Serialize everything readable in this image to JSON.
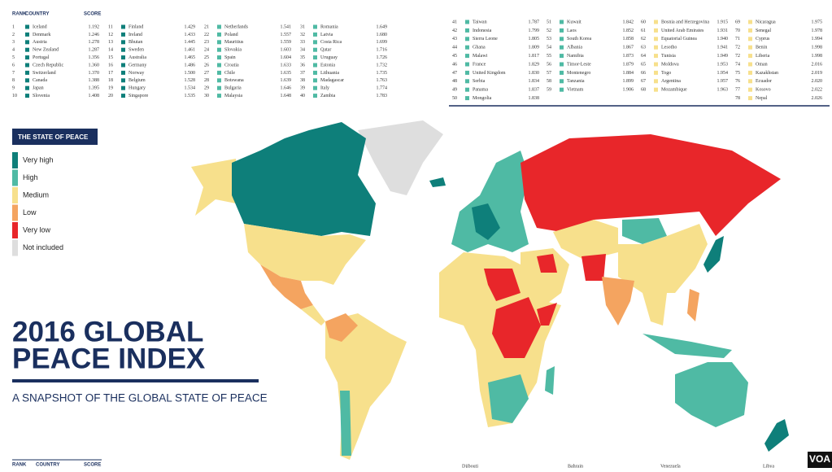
{
  "tables": [
    {
      "header": [
        "RANK",
        "COUNTRY",
        "SCORE"
      ],
      "columns": [
        {
          "color": "#0e7f7a",
          "rows": [
            [
              1,
              "Iceland",
              "1.192"
            ],
            [
              2,
              "Denmark",
              "1.246"
            ],
            [
              3,
              "Austria",
              "1.278"
            ],
            [
              4,
              "New Zealand",
              "1.287"
            ],
            [
              5,
              "Portugal",
              "1.356"
            ],
            [
              6,
              "Czech Republic",
              "1.360"
            ],
            [
              7,
              "Switzerland",
              "1.370"
            ],
            [
              8,
              "Canada",
              "1.388"
            ],
            [
              9,
              "Japan",
              "1.395"
            ],
            [
              10,
              "Slovenia",
              "1.408"
            ]
          ]
        },
        {
          "color": "#0e7f7a",
          "rows": [
            [
              11,
              "Finland",
              "1.429"
            ],
            [
              12,
              "Ireland",
              "1.433"
            ],
            [
              13,
              "Bhutan",
              "1.445"
            ],
            [
              14,
              "Sweden",
              "1.461"
            ],
            [
              15,
              "Australia",
              "1.465"
            ],
            [
              16,
              "Germany",
              "1.486"
            ],
            [
              17,
              "Norway",
              "1.500"
            ],
            [
              18,
              "Belgium",
              "1.528"
            ],
            [
              19,
              "Hungary",
              "1.534"
            ],
            [
              20,
              "Singapore",
              "1.535"
            ]
          ]
        },
        {
          "color": "#4fbaa4",
          "rows": [
            [
              21,
              "Netherlands",
              "1.541"
            ],
            [
              22,
              "Poland",
              "1.557"
            ],
            [
              23,
              "Mauritius",
              "1.559"
            ],
            [
              24,
              "Slovakia",
              "1.603"
            ],
            [
              25,
              "Spain",
              "1.604"
            ],
            [
              26,
              "Croatia",
              "1.633"
            ],
            [
              27,
              "Chile",
              "1.635"
            ],
            [
              28,
              "Botswana",
              "1.639"
            ],
            [
              29,
              "Bulgaria",
              "1.646"
            ],
            [
              30,
              "Malaysia",
              "1.648"
            ]
          ]
        },
        {
          "color": "#4fbaa4",
          "rows": [
            [
              31,
              "Romania",
              "1.649"
            ],
            [
              32,
              "Latvia",
              "1.680"
            ],
            [
              33,
              "Costa Rica",
              "1.699"
            ],
            [
              34,
              "Qatar",
              "1.716"
            ],
            [
              35,
              "Uruguay",
              "1.726"
            ],
            [
              36,
              "Estonia",
              "1.732"
            ],
            [
              37,
              "Lithuania",
              "1.735"
            ],
            [
              38,
              "Madagascar",
              "1.763"
            ],
            [
              39,
              "Italy",
              "1.774"
            ],
            [
              40,
              "Zambia",
              "1.783"
            ]
          ]
        }
      ]
    },
    {
      "columns": [
        {
          "color": "#4fbaa4",
          "rows": [
            [
              41,
              "Taiwan",
              "1.787"
            ],
            [
              42,
              "Indonesia",
              "1.799"
            ],
            [
              43,
              "Sierra Leone",
              "1.805"
            ],
            [
              44,
              "Ghana",
              "1.809"
            ],
            [
              45,
              "Malawi",
              "1.817"
            ],
            [
              46,
              "France",
              "1.829"
            ],
            [
              47,
              "United Kingdom",
              "1.830"
            ],
            [
              48,
              "Serbia",
              "1.834"
            ],
            [
              49,
              "Panama",
              "1.837"
            ],
            [
              50,
              "Mongolia",
              "1.838"
            ]
          ]
        },
        {
          "color": "#4fbaa4",
          "rows": [
            [
              51,
              "Kuwait",
              "1.842"
            ],
            [
              52,
              "Laos",
              "1.852"
            ],
            [
              53,
              "South Korea",
              "1.858"
            ],
            [
              54,
              "Albania",
              "1.867"
            ],
            [
              55,
              "Namibia",
              "1.873"
            ],
            [
              56,
              "Timor-Leste",
              "1.879"
            ],
            [
              57,
              "Montenegro",
              "1.884"
            ],
            [
              58,
              "Tanzania",
              "1.899"
            ],
            [
              59,
              "Vietnam",
              "1.906"
            ]
          ]
        },
        {
          "color": "#f7e08c",
          "rows": [
            [
              60,
              "Bosnia and Herzegovina",
              "1.915"
            ],
            [
              61,
              "United Arab Emirates",
              "1.931"
            ],
            [
              62,
              "Equatorial Guinea",
              "1.940"
            ],
            [
              63,
              "Lesotho",
              "1.941"
            ],
            [
              64,
              "Tunisia",
              "1.949"
            ],
            [
              65,
              "Moldova",
              "1.953"
            ],
            [
              66,
              "Togo",
              "1.954"
            ],
            [
              67,
              "Argentina",
              "1.957"
            ],
            [
              68,
              "Mozambique",
              "1.963"
            ]
          ]
        },
        {
          "color": "#f7e08c",
          "rows": [
            [
              69,
              "Nicaragua",
              "1.975"
            ],
            [
              70,
              "Senegal",
              "1.978"
            ],
            [
              71,
              "Cyprus",
              "1.994"
            ],
            [
              72,
              "Benin",
              "1.998"
            ],
            [
              72,
              "Liberia",
              "1.998"
            ],
            [
              74,
              "Oman",
              "2.016"
            ],
            [
              75,
              "Kazakhstan",
              "2.019"
            ],
            [
              76,
              "Ecuador",
              "2.020"
            ],
            [
              77,
              "Kosovo",
              "2.022"
            ],
            [
              78,
              "Nepal",
              "2.026"
            ]
          ]
        }
      ]
    }
  ],
  "legend": {
    "title": "THE STATE OF PEACE",
    "items": [
      {
        "label": "Very high",
        "color": "#0e7f7a"
      },
      {
        "label": "High",
        "color": "#4fbaa4"
      },
      {
        "label": "Medium",
        "color": "#f7e08c"
      },
      {
        "label": "Low",
        "color": "#f4a460"
      },
      {
        "label": "Very low",
        "color": "#e8262a"
      },
      {
        "label": "Not included",
        "color": "#dedede"
      }
    ]
  },
  "title": [
    "2016 GLOBAL",
    "PEACE INDEX"
  ],
  "subtitle": "A SNAPSHOT OF THE GLOBAL STATE OF PEACE",
  "footer": {
    "header": [
      "RANK",
      "COUNTRY",
      "SCORE"
    ],
    "partial": [
      "Djibouti",
      "Bahrain",
      "Venezuela",
      "Libya"
    ]
  },
  "logo": "VOA"
}
